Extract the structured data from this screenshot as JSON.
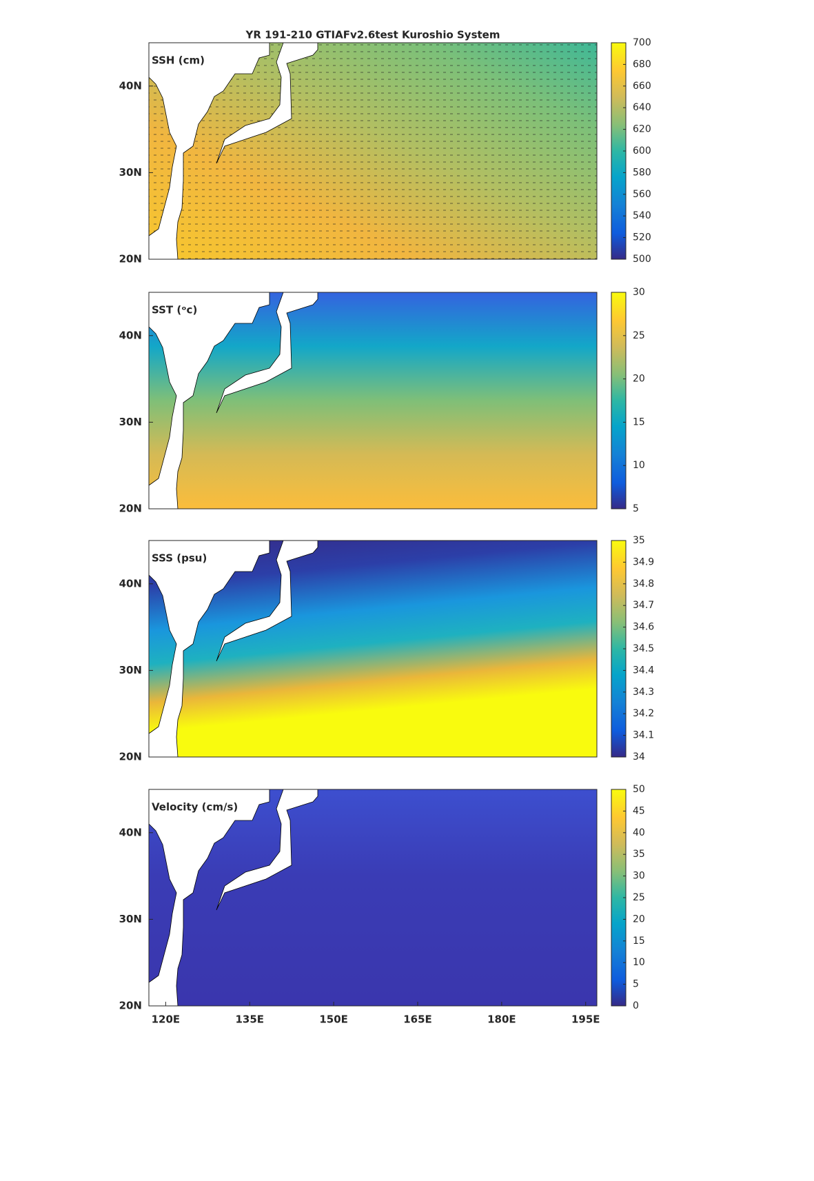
{
  "chart_data": [
    {
      "type": "map",
      "title": "YR 191-210 GTIAFv2.6test Kuroshio System",
      "label": "SSH (cm)",
      "xlim": [
        117,
        197
      ],
      "ylim": [
        20,
        45
      ],
      "yticks": [
        {
          "value": 20,
          "label": "20N"
        },
        {
          "value": 30,
          "label": "30N"
        },
        {
          "value": 40,
          "label": "40N"
        }
      ],
      "clim": [
        500,
        700
      ],
      "cticks": [
        500,
        520,
        540,
        560,
        580,
        600,
        620,
        640,
        660,
        680,
        700
      ]
    },
    {
      "type": "map",
      "label": "SST (ᵒc)",
      "xlim": [
        117,
        197
      ],
      "ylim": [
        20,
        45
      ],
      "yticks": [
        {
          "value": 20,
          "label": "20N"
        },
        {
          "value": 30,
          "label": "30N"
        },
        {
          "value": 40,
          "label": "40N"
        }
      ],
      "clim": [
        5,
        30
      ],
      "cticks": [
        5,
        10,
        15,
        20,
        25,
        30
      ]
    },
    {
      "type": "map",
      "label": "SSS (psu)",
      "xlim": [
        117,
        197
      ],
      "ylim": [
        20,
        45
      ],
      "yticks": [
        {
          "value": 20,
          "label": "20N"
        },
        {
          "value": 30,
          "label": "30N"
        },
        {
          "value": 40,
          "label": "40N"
        }
      ],
      "clim": [
        34,
        35
      ],
      "cticks": [
        34,
        34.1,
        34.2,
        34.3,
        34.4,
        34.5,
        34.6,
        34.7,
        34.8,
        34.9,
        35
      ]
    },
    {
      "type": "map",
      "label": "Velocity (cm/s)",
      "xlim": [
        117,
        197
      ],
      "ylim": [
        20,
        45
      ],
      "yticks": [
        {
          "value": 20,
          "label": "20N"
        },
        {
          "value": 30,
          "label": "30N"
        },
        {
          "value": 40,
          "label": "40N"
        }
      ],
      "xticks": [
        {
          "value": 120,
          "label": "120E"
        },
        {
          "value": 135,
          "label": "135E"
        },
        {
          "value": 150,
          "label": "150E"
        },
        {
          "value": 165,
          "label": "165E"
        },
        {
          "value": 180,
          "label": "180E"
        },
        {
          "value": 195,
          "label": "195E"
        }
      ],
      "clim": [
        0,
        50
      ],
      "cticks": [
        0,
        5,
        10,
        15,
        20,
        25,
        30,
        35,
        40,
        45,
        50
      ]
    }
  ]
}
